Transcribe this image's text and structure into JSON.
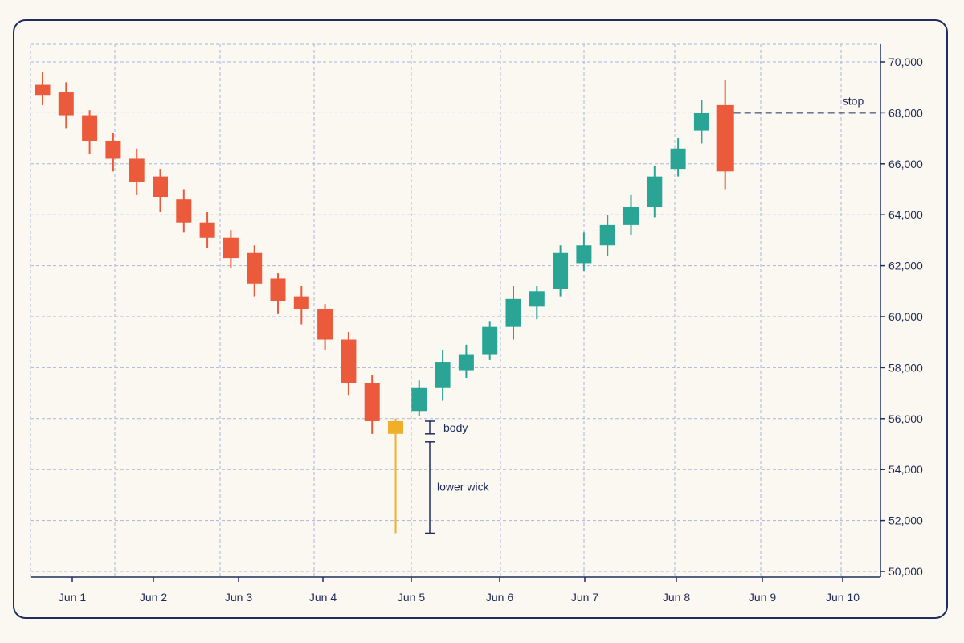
{
  "chart_data": {
    "type": "candlestick",
    "title": "",
    "xlabel": "",
    "ylabel": "",
    "ylim": [
      50000,
      70000
    ],
    "y_ticks": [
      "50,000",
      "52,000",
      "54,000",
      "56,000",
      "58,000",
      "60,000",
      "62,000",
      "64,000",
      "66,000",
      "68,000",
      "70,000"
    ],
    "x_tick_labels": [
      "Jun 1",
      "Jun 2",
      "Jun 3",
      "Jun 4",
      "Jun 5",
      "Jun 6",
      "Jun 7",
      "Jun 8",
      "Jun 9",
      "Jun 10"
    ],
    "grid": true,
    "colors": {
      "down": "#ea5a3b",
      "up": "#2aa595",
      "highlight": "#f0ae2a",
      "annotation": "#1f2d5c",
      "grid": "#a9b6dc"
    },
    "candles": [
      {
        "o": 68700,
        "h": 69600,
        "l": 68300,
        "c": 69100,
        "dir": "up-red"
      },
      {
        "o": 68800,
        "h": 69200,
        "l": 67400,
        "c": 67900
      },
      {
        "o": 67900,
        "h": 68100,
        "l": 66400,
        "c": 66900
      },
      {
        "o": 66900,
        "h": 67200,
        "l": 65700,
        "c": 66200
      },
      {
        "o": 66200,
        "h": 66600,
        "l": 64800,
        "c": 65300
      },
      {
        "o": 65500,
        "h": 65800,
        "l": 64100,
        "c": 64700
      },
      {
        "o": 64600,
        "h": 65000,
        "l": 63300,
        "c": 63700
      },
      {
        "o": 63700,
        "h": 64100,
        "l": 62700,
        "c": 63100
      },
      {
        "o": 63100,
        "h": 63400,
        "l": 61900,
        "c": 62300
      },
      {
        "o": 62500,
        "h": 62800,
        "l": 60800,
        "c": 61300
      },
      {
        "o": 61500,
        "h": 61700,
        "l": 60100,
        "c": 60600
      },
      {
        "o": 60800,
        "h": 61200,
        "l": 59700,
        "c": 60300
      },
      {
        "o": 60300,
        "h": 60500,
        "l": 58700,
        "c": 59100
      },
      {
        "o": 59100,
        "h": 59400,
        "l": 56900,
        "c": 57400
      },
      {
        "o": 57400,
        "h": 57700,
        "l": 55400,
        "c": 55900
      },
      {
        "o": 55900,
        "h": 56000,
        "l": 51500,
        "c": 55400,
        "highlight": true
      },
      {
        "o": 56300,
        "h": 57500,
        "l": 56100,
        "c": 57200
      },
      {
        "o": 57200,
        "h": 58700,
        "l": 56700,
        "c": 58200
      },
      {
        "o": 57900,
        "h": 58900,
        "l": 57600,
        "c": 58500
      },
      {
        "o": 58500,
        "h": 59800,
        "l": 58300,
        "c": 59600
      },
      {
        "o": 59600,
        "h": 61200,
        "l": 59100,
        "c": 60700
      },
      {
        "o": 60400,
        "h": 61200,
        "l": 59900,
        "c": 61000
      },
      {
        "o": 61100,
        "h": 62800,
        "l": 60800,
        "c": 62500
      },
      {
        "o": 62100,
        "h": 63300,
        "l": 61800,
        "c": 62800
      },
      {
        "o": 62800,
        "h": 64000,
        "l": 62400,
        "c": 63600
      },
      {
        "o": 63600,
        "h": 64800,
        "l": 63200,
        "c": 64300
      },
      {
        "o": 64300,
        "h": 65900,
        "l": 63900,
        "c": 65500
      },
      {
        "o": 65800,
        "h": 67000,
        "l": 65500,
        "c": 66600
      },
      {
        "o": 67300,
        "h": 68500,
        "l": 66800,
        "c": 68000
      },
      {
        "o": 68300,
        "h": 69300,
        "l": 65000,
        "c": 65700
      }
    ],
    "stop_level": 68000,
    "annotations": {
      "stop_label": "stop",
      "body_label": "body",
      "lower_wick_label": "lower wick"
    }
  }
}
